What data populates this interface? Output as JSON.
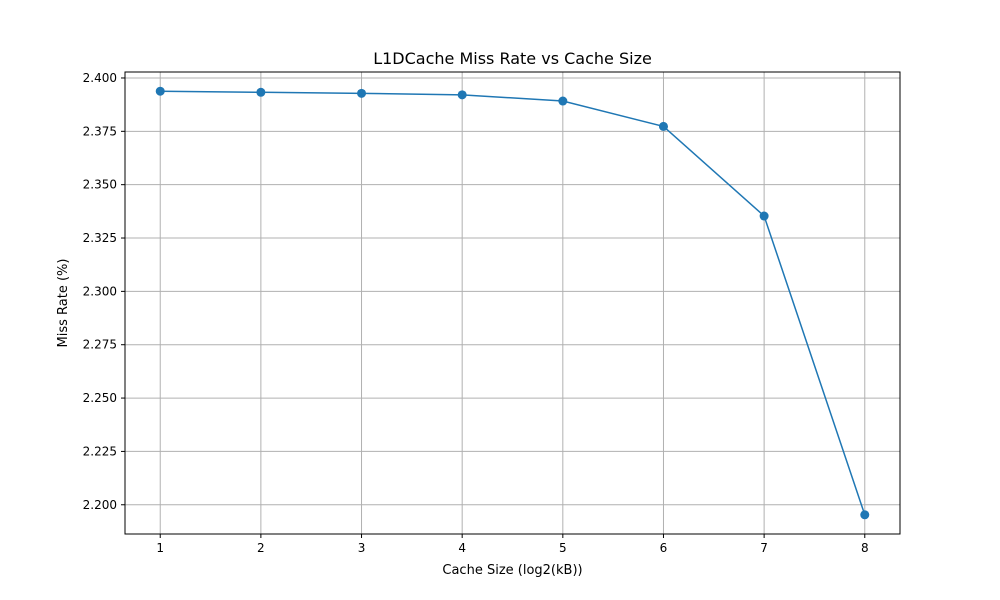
{
  "chart_data": {
    "type": "line",
    "title": "L1DCache Miss Rate vs Cache Size",
    "xlabel": "Cache Size (log2(kB))",
    "ylabel": "Miss Rate (%)",
    "x": [
      1,
      2,
      3,
      4,
      5,
      6,
      7,
      8
    ],
    "series": [
      {
        "values": [
          2.3938,
          2.3933,
          2.3928,
          2.3921,
          2.3892,
          2.3773,
          2.3353,
          2.1953
        ],
        "color": "#1f77b4",
        "marker": "circle"
      }
    ],
    "xticks": [
      "1",
      "2",
      "3",
      "4",
      "5",
      "6",
      "7",
      "8"
    ],
    "yticks": [
      "2.200",
      "2.225",
      "2.250",
      "2.275",
      "2.300",
      "2.325",
      "2.350",
      "2.375",
      "2.400"
    ],
    "xlim": [
      0.65,
      8.35
    ],
    "ylim": [
      2.1863,
      2.4028
    ],
    "grid": true
  }
}
